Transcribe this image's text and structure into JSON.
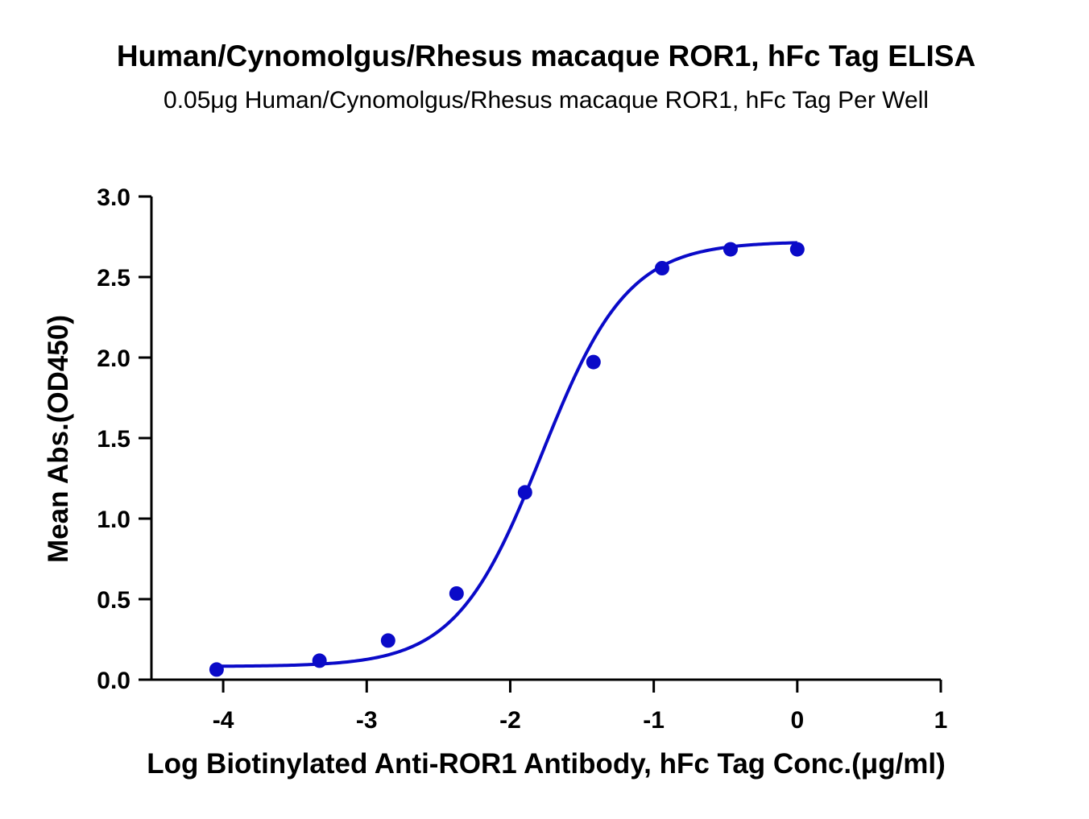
{
  "chart_data": {
    "type": "scatter",
    "title": "Human/Cynomolgus/Rhesus macaque ROR1, hFc Tag ELISA",
    "subtitle": "0.05μg Human/Cynomolgus/Rhesus macaque ROR1, hFc Tag Per Well",
    "xlabel": "Log Biotinylated Anti-ROR1 Antibody, hFc Tag Conc.(μg/ml)",
    "ylabel": "Mean Abs.(OD450)",
    "xlim": [
      -4.5,
      1
    ],
    "ylim": [
      0,
      3
    ],
    "x_ticks": [
      -4,
      -3,
      -2,
      -1,
      0,
      1
    ],
    "x_tick_labels": [
      "-4",
      "-3",
      "-2",
      "-1",
      "0",
      "1"
    ],
    "y_ticks": [
      0,
      0.5,
      1,
      1.5,
      2,
      2.5,
      3
    ],
    "y_tick_labels": [
      "0.0",
      "0.5",
      "1.0",
      "1.5",
      "2.0",
      "2.5",
      "3.0"
    ],
    "grid": false,
    "legend": false,
    "color": "#0a0ac8",
    "series": [
      {
        "x": [
          -4.046,
          -3.329,
          -2.851,
          -2.374,
          -1.897,
          -1.42,
          -0.942,
          -0.465,
          0.0
        ],
        "y": [
          0.063,
          0.118,
          0.243,
          0.535,
          1.163,
          1.972,
          2.555,
          2.672,
          2.672
        ],
        "fit": "four-parameter logistic",
        "fit_params": {
          "bottom": 0.082,
          "top": 2.72,
          "log_ec50": -1.78,
          "hill_slope": 1.45
        }
      }
    ]
  }
}
